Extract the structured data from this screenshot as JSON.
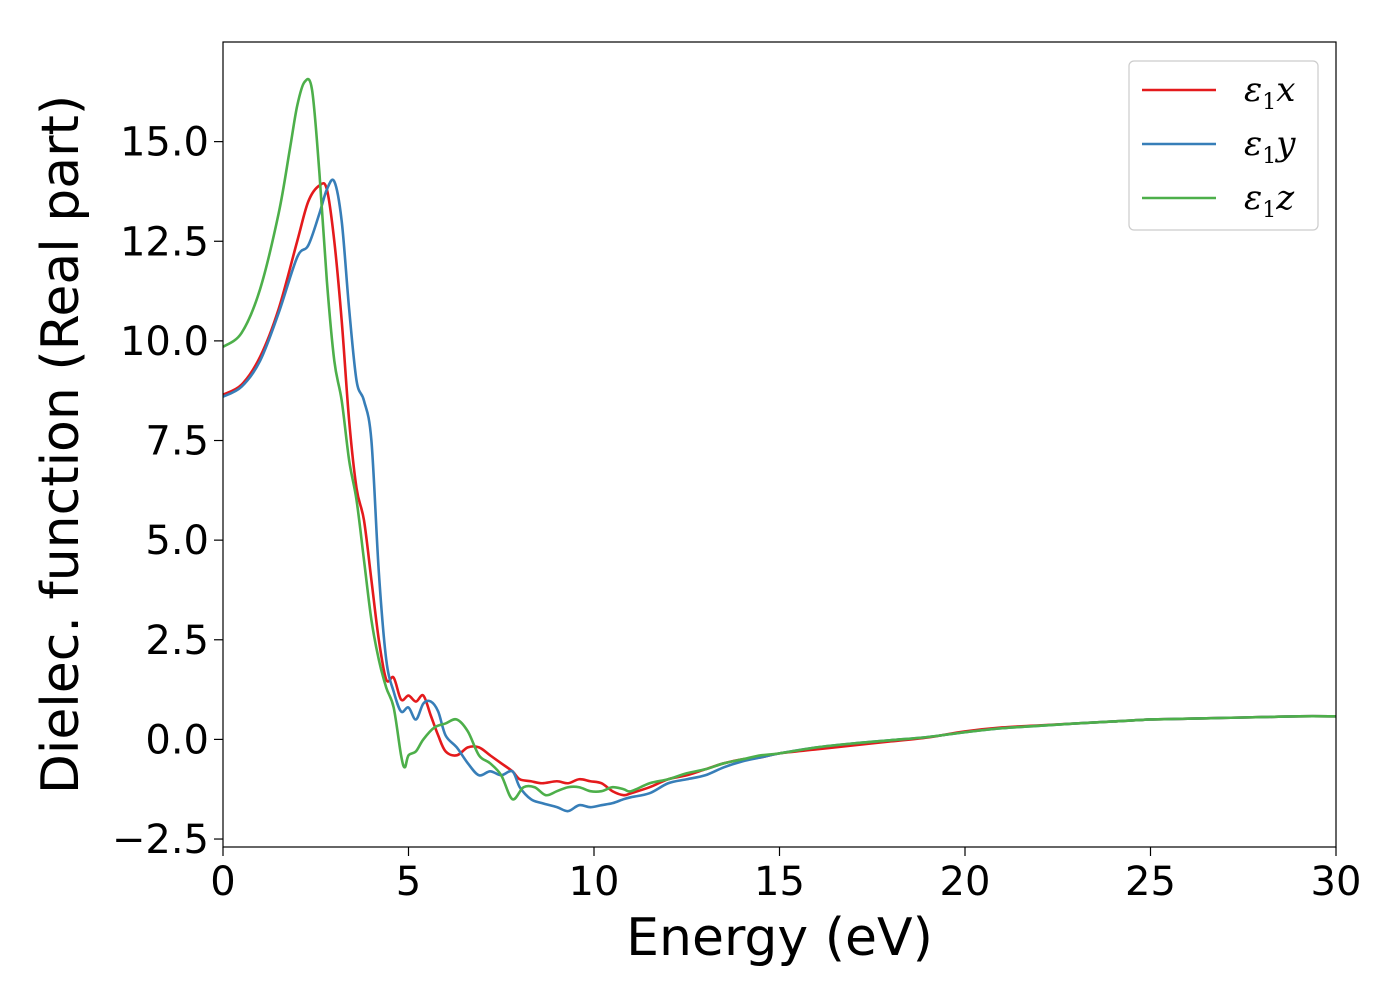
{
  "chart_data": {
    "type": "line",
    "xlabel": "Energy (eV)",
    "ylabel": "Dielec. function (Real part)",
    "xlim": [
      0,
      30
    ],
    "ylim": [
      -2.7,
      17.5
    ],
    "xticks": [
      0,
      5,
      10,
      15,
      20,
      25,
      30
    ],
    "xtick_labels": [
      "0",
      "5",
      "10",
      "15",
      "20",
      "25",
      "30"
    ],
    "yticks": [
      -2.5,
      0.0,
      2.5,
      5.0,
      7.5,
      10.0,
      12.5,
      15.0
    ],
    "ytick_labels": [
      "−2.5",
      "0.0",
      "2.5",
      "5.0",
      "7.5",
      "10.0",
      "12.5",
      "15.0"
    ],
    "grid": false,
    "legend_position": "top-right",
    "series": [
      {
        "name": "ε₁x",
        "legend_main": "ε",
        "legend_sub": "1",
        "legend_tail": "x",
        "color": "#e41a1c",
        "x": [
          0,
          0.5,
          1.0,
          1.5,
          2.0,
          2.3,
          2.6,
          2.8,
          3.0,
          3.2,
          3.4,
          3.6,
          3.8,
          4.0,
          4.2,
          4.4,
          4.6,
          4.8,
          5.0,
          5.2,
          5.4,
          5.6,
          5.8,
          6.0,
          6.3,
          6.6,
          6.9,
          7.2,
          7.5,
          7.8,
          8.0,
          8.3,
          8.6,
          9.0,
          9.3,
          9.6,
          9.9,
          10.2,
          10.5,
          10.8,
          11.0,
          11.5,
          12.0,
          12.5,
          13.0,
          13.5,
          14.0,
          14.5,
          15.0,
          16.0,
          17.0,
          18.0,
          19.0,
          20.0,
          21.0,
          22.0,
          23.0,
          24.0,
          25.0,
          26.0,
          27.0,
          28.0,
          29.0,
          30.0
        ],
        "y": [
          8.65,
          8.9,
          9.6,
          10.8,
          12.5,
          13.5,
          13.9,
          13.8,
          12.5,
          10.5,
          8.0,
          6.3,
          5.5,
          4.0,
          2.5,
          1.5,
          1.55,
          1.0,
          1.1,
          0.95,
          1.1,
          0.6,
          0.1,
          -0.3,
          -0.4,
          -0.2,
          -0.2,
          -0.4,
          -0.6,
          -0.8,
          -1.0,
          -1.05,
          -1.1,
          -1.05,
          -1.1,
          -1.0,
          -1.05,
          -1.1,
          -1.3,
          -1.4,
          -1.35,
          -1.2,
          -1.0,
          -0.9,
          -0.75,
          -0.6,
          -0.5,
          -0.45,
          -0.35,
          -0.25,
          -0.15,
          -0.05,
          0.05,
          0.2,
          0.3,
          0.35,
          0.4,
          0.45,
          0.5,
          0.52,
          0.54,
          0.56,
          0.58,
          0.58
        ]
      },
      {
        "name": "ε₁y",
        "legend_main": "ε",
        "legend_sub": "1",
        "legend_tail": "y",
        "color": "#377eb8",
        "x": [
          0,
          0.5,
          1.0,
          1.5,
          2.0,
          2.3,
          2.6,
          2.8,
          3.0,
          3.2,
          3.4,
          3.6,
          3.8,
          4.0,
          4.2,
          4.4,
          4.6,
          4.8,
          5.0,
          5.2,
          5.4,
          5.6,
          5.8,
          6.0,
          6.3,
          6.6,
          6.9,
          7.2,
          7.5,
          7.8,
          8.0,
          8.3,
          8.6,
          9.0,
          9.3,
          9.6,
          9.9,
          10.2,
          10.5,
          10.8,
          11.0,
          11.5,
          12.0,
          12.5,
          13.0,
          13.5,
          14.0,
          14.5,
          15.0,
          16.0,
          17.0,
          18.0,
          19.0,
          20.0,
          21.0,
          22.0,
          23.0,
          24.0,
          25.0,
          26.0,
          27.0,
          28.0,
          29.0,
          30.0
        ],
        "y": [
          8.6,
          8.85,
          9.5,
          10.7,
          12.1,
          12.4,
          13.2,
          13.8,
          14.0,
          13.0,
          10.8,
          9.0,
          8.5,
          7.5,
          4.2,
          2.0,
          1.2,
          0.7,
          0.8,
          0.5,
          0.9,
          0.95,
          0.7,
          0.1,
          -0.2,
          -0.6,
          -0.9,
          -0.8,
          -0.9,
          -0.8,
          -1.2,
          -1.5,
          -1.6,
          -1.7,
          -1.8,
          -1.65,
          -1.7,
          -1.65,
          -1.6,
          -1.5,
          -1.45,
          -1.35,
          -1.1,
          -1.0,
          -0.9,
          -0.7,
          -0.55,
          -0.45,
          -0.35,
          -0.2,
          -0.1,
          -0.02,
          0.06,
          0.18,
          0.28,
          0.34,
          0.4,
          0.45,
          0.5,
          0.52,
          0.54,
          0.56,
          0.58,
          0.58
        ]
      },
      {
        "name": "ε₁z",
        "legend_main": "ε",
        "legend_sub": "1",
        "legend_tail": "z",
        "color": "#4daf4a",
        "x": [
          0,
          0.5,
          1.0,
          1.5,
          1.8,
          2.0,
          2.2,
          2.4,
          2.6,
          2.8,
          3.0,
          3.2,
          3.4,
          3.6,
          3.8,
          4.0,
          4.2,
          4.4,
          4.6,
          4.8,
          4.9,
          5.0,
          5.2,
          5.4,
          5.7,
          6.0,
          6.3,
          6.6,
          6.9,
          7.2,
          7.5,
          7.8,
          8.1,
          8.4,
          8.7,
          9.0,
          9.3,
          9.6,
          9.9,
          10.2,
          10.5,
          10.8,
          11.0,
          11.5,
          12.0,
          12.5,
          13.0,
          13.5,
          14.0,
          14.5,
          15.0,
          16.0,
          17.0,
          18.0,
          19.0,
          20.0,
          21.0,
          22.0,
          23.0,
          24.0,
          25.0,
          26.0,
          27.0,
          28.0,
          29.0,
          30.0
        ],
        "y": [
          9.85,
          10.2,
          11.3,
          13.2,
          14.8,
          15.9,
          16.5,
          16.3,
          14.2,
          11.5,
          9.5,
          8.5,
          7.0,
          6.0,
          4.5,
          3.0,
          2.0,
          1.3,
          0.8,
          -0.4,
          -0.7,
          -0.4,
          -0.3,
          0.0,
          0.3,
          0.4,
          0.5,
          0.2,
          -0.4,
          -0.6,
          -0.9,
          -1.5,
          -1.2,
          -1.2,
          -1.4,
          -1.3,
          -1.2,
          -1.2,
          -1.3,
          -1.3,
          -1.2,
          -1.25,
          -1.3,
          -1.1,
          -1.0,
          -0.85,
          -0.75,
          -0.6,
          -0.5,
          -0.4,
          -0.35,
          -0.2,
          -0.1,
          -0.02,
          0.06,
          0.18,
          0.28,
          0.34,
          0.4,
          0.45,
          0.5,
          0.52,
          0.54,
          0.56,
          0.58,
          0.58
        ]
      }
    ]
  }
}
